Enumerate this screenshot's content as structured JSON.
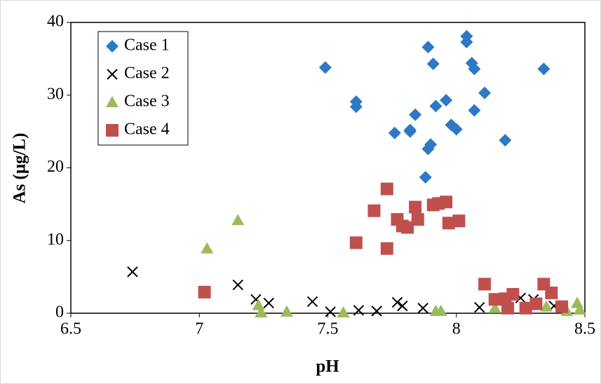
{
  "chart_data": {
    "type": "scatter",
    "xlabel": "pH",
    "ylabel": "As (μg/L)",
    "xlim": [
      6.5,
      8.5
    ],
    "xticks": [
      6.5,
      7,
      7.5,
      8,
      8.5
    ],
    "ylim": [
      0,
      40
    ],
    "yticks": [
      0,
      10,
      20,
      30,
      40
    ],
    "legend": "upper-left",
    "series": [
      {
        "name": "Case 1",
        "color": "#2e78c6",
        "marker": "diamond",
        "x": [
          7.49,
          7.61,
          7.61,
          7.89,
          7.91,
          8.04,
          8.04,
          8.06,
          8.07,
          8.34,
          8.11,
          7.96,
          7.92,
          8.07,
          7.84,
          7.98,
          8.0,
          7.82,
          7.76,
          7.82,
          7.9,
          7.89,
          8.19,
          7.88
        ],
        "values": [
          33.8,
          29.1,
          28.4,
          36.6,
          34.3,
          38.1,
          37.3,
          34.4,
          33.6,
          33.6,
          30.3,
          29.3,
          28.5,
          27.9,
          27.3,
          25.9,
          25.3,
          25.2,
          24.8,
          25.0,
          23.2,
          22.6,
          23.8,
          18.7
        ]
      },
      {
        "name": "Case 2",
        "color": "#000000",
        "marker": "x",
        "x": [
          6.74,
          7.15,
          7.22,
          7.27,
          7.44,
          7.51,
          7.62,
          7.69,
          7.77,
          7.79,
          7.87,
          8.09,
          8.25,
          8.3,
          8.38
        ],
        "values": [
          5.7,
          3.9,
          1.9,
          1.4,
          1.6,
          0.2,
          0.4,
          0.3,
          1.5,
          1.0,
          0.7,
          0.8,
          2.1,
          1.9,
          1.0
        ]
      },
      {
        "name": "Case 3",
        "color": "#9bbb59",
        "marker": "triangle",
        "x": [
          7.03,
          7.15,
          7.23,
          7.24,
          7.34,
          7.56,
          7.92,
          7.94,
          8.15,
          8.35,
          8.43,
          8.47,
          8.48
        ],
        "values": [
          8.9,
          12.8,
          1.1,
          0.1,
          0.2,
          0.1,
          0.3,
          0.3,
          0.7,
          0.9,
          0.3,
          1.4,
          0.5
        ]
      },
      {
        "name": "Case 4",
        "color": "#c0504d",
        "marker": "square",
        "x": [
          7.02,
          7.61,
          7.68,
          7.73,
          7.73,
          7.77,
          7.79,
          7.81,
          7.84,
          7.85,
          7.91,
          7.93,
          7.96,
          7.97,
          8.01,
          8.11,
          8.15,
          8.19,
          8.2,
          8.22,
          8.27,
          8.31,
          8.34,
          8.37,
          8.41
        ],
        "values": [
          2.9,
          9.7,
          14.1,
          17.1,
          8.9,
          12.9,
          12.0,
          11.8,
          14.6,
          12.9,
          14.9,
          15.1,
          15.3,
          12.4,
          12.7,
          4.0,
          1.9,
          2.0,
          0.7,
          2.6,
          0.7,
          1.3,
          4.0,
          2.8,
          0.9
        ]
      }
    ]
  }
}
